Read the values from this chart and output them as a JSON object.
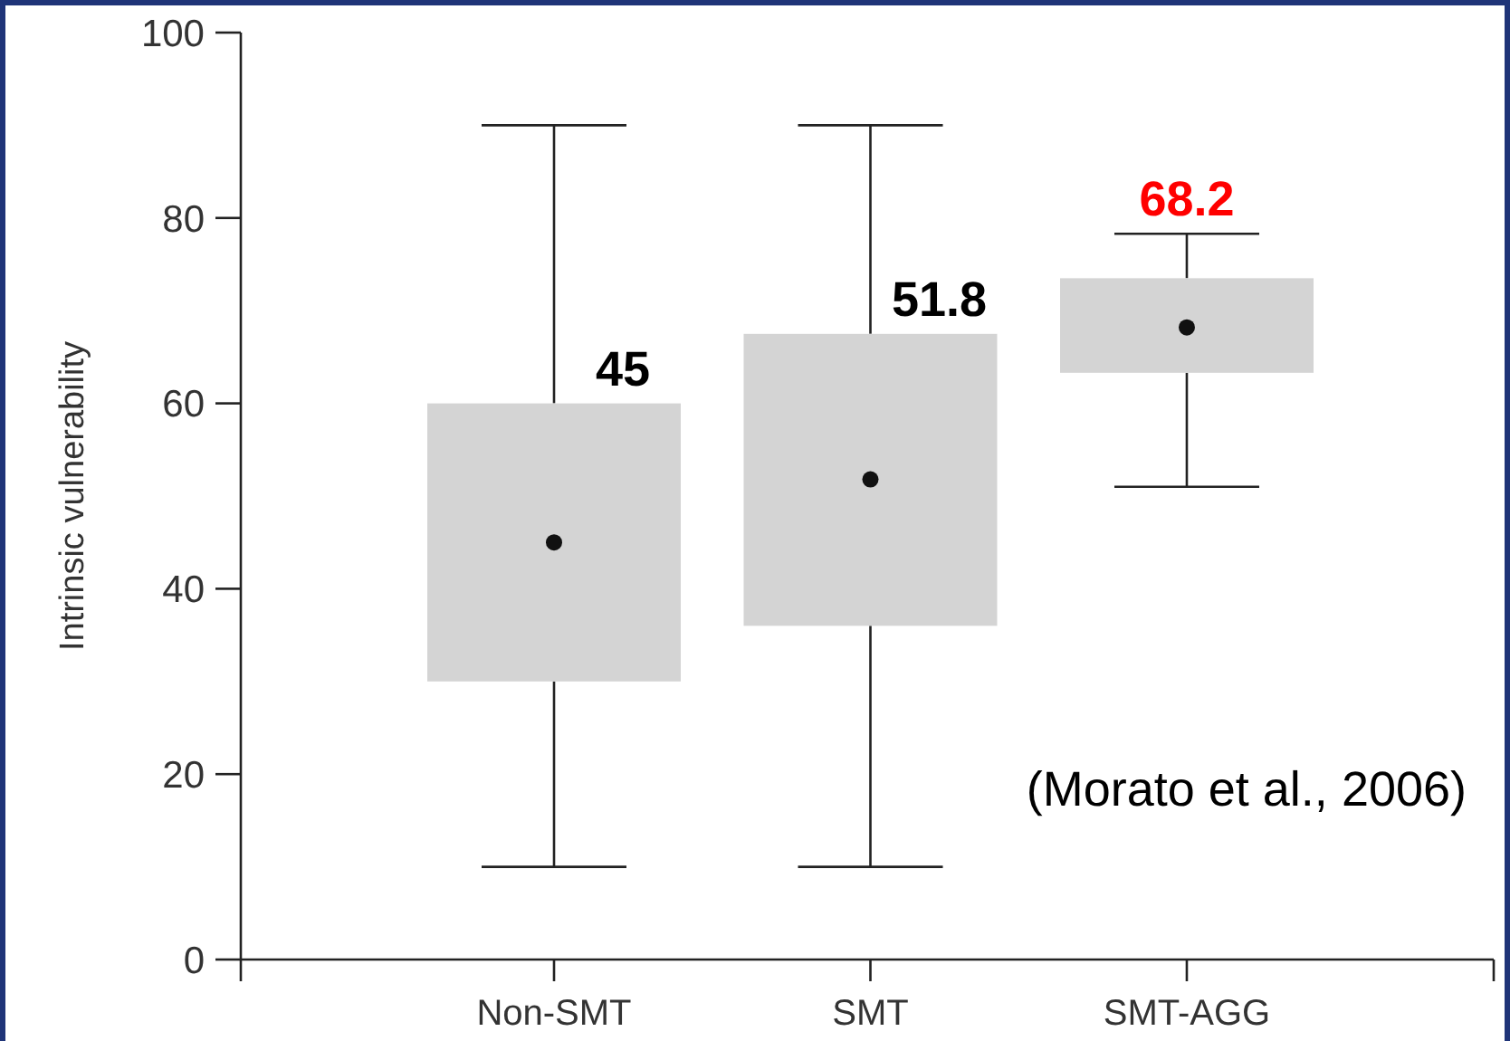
{
  "chart_data": {
    "type": "box",
    "ylabel": "Intrinsic vulnerability",
    "categories": [
      "Non-SMT",
      "SMT",
      "SMT-AGG"
    ],
    "boxes": [
      {
        "low": 10,
        "q1": 30,
        "median": 45,
        "q3": 60,
        "high": 90
      },
      {
        "low": 10,
        "q1": 36,
        "median": 51.8,
        "q3": 67.5,
        "high": 90
      },
      {
        "low": 51,
        "q1": 63.3,
        "median": 68.2,
        "q3": 73.5,
        "high": 78.3
      }
    ],
    "color": "#d4d4d4",
    "ylim": [
      0,
      100
    ],
    "yticks": [
      0,
      20,
      40,
      60,
      80,
      100
    ],
    "grid": false,
    "annotations": [
      {
        "text": "45",
        "x": "Non-SMT",
        "y": 60
      },
      {
        "text": "51.8",
        "x": "SMT",
        "y": 67.5
      },
      {
        "text": "68.2",
        "x": "SMT-AGG",
        "y": 78.3
      },
      "(Morato et al., 2006)"
    ]
  }
}
